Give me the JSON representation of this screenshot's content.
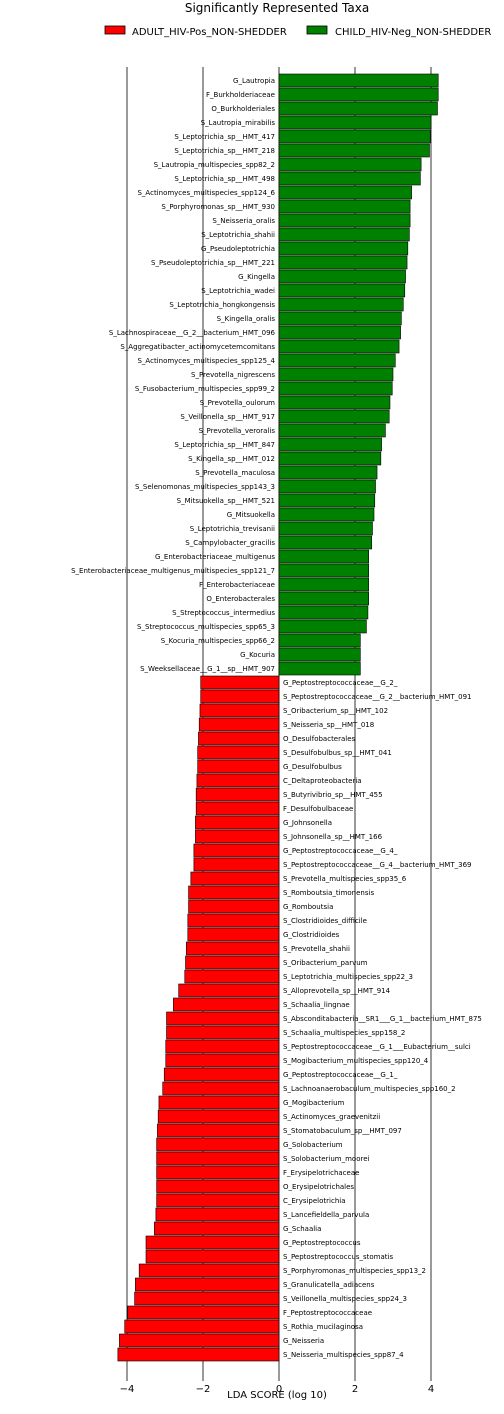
{
  "chart_data": {
    "type": "bar",
    "orientation": "horizontal",
    "title": "Significantly Represented Taxa",
    "xlabel": "LDA SCORE (log 10)",
    "xlim": [
      -4.3,
      5.3
    ],
    "xticks": [
      -4,
      -2,
      0,
      2,
      4
    ],
    "xtick_labels": [
      "−4",
      "−2",
      "0",
      "2",
      "4"
    ],
    "grid": "vertical lines at ticks",
    "legend_position": "top",
    "series": [
      {
        "name": "ADULT_HIV-Pos_NON-SHEDDER",
        "color": "#ff0000"
      },
      {
        "name": "CHILD_HIV-Neg_NON-SHEDDER",
        "color": "#008000"
      }
    ],
    "bars": [
      {
        "label": "G_Lautropia",
        "value": 4.19,
        "group": 1
      },
      {
        "label": "F_Burkholderiaceae",
        "value": 4.19,
        "group": 1
      },
      {
        "label": "O_Burkholderiales",
        "value": 4.17,
        "group": 1
      },
      {
        "label": "S_Lautropia_mirabilis",
        "value": 4.0,
        "group": 1
      },
      {
        "label": "S_Leptotrichia_sp__HMT_417",
        "value": 3.98,
        "group": 1
      },
      {
        "label": "S_Leptotrichia_sp__HMT_218",
        "value": 3.96,
        "group": 1
      },
      {
        "label": "S_Lautropia_multispecies_spp82_2",
        "value": 3.74,
        "group": 1
      },
      {
        "label": "S_Leptotrichia_sp__HMT_498",
        "value": 3.72,
        "group": 1
      },
      {
        "label": "S_Actinomyces_multispecies_spp124_6",
        "value": 3.49,
        "group": 1
      },
      {
        "label": "S_Porphyromonas_sp__HMT_930",
        "value": 3.45,
        "group": 1
      },
      {
        "label": "S_Neisseria_oralis",
        "value": 3.45,
        "group": 1
      },
      {
        "label": "S_Leptotrichia_shahii",
        "value": 3.43,
        "group": 1
      },
      {
        "label": "G_Pseudoleptotrichia",
        "value": 3.39,
        "group": 1
      },
      {
        "label": "S_Pseudoleptotrichia_sp__HMT_221",
        "value": 3.37,
        "group": 1
      },
      {
        "label": "G_Kingella",
        "value": 3.33,
        "group": 1
      },
      {
        "label": "S_Leptotrichia_wadei",
        "value": 3.31,
        "group": 1
      },
      {
        "label": "S_Leptotrichia_hongkongensis",
        "value": 3.27,
        "group": 1
      },
      {
        "label": "S_Kingella_oralis",
        "value": 3.22,
        "group": 1
      },
      {
        "label": "S_Lachnospiraceae__G_2__bacterium_HMT_096",
        "value": 3.2,
        "group": 1
      },
      {
        "label": "S_Aggregatibacter_actinomycetemcomitans",
        "value": 3.16,
        "group": 1
      },
      {
        "label": "S_Actinomyces_multispecies_spp125_4",
        "value": 3.06,
        "group": 1
      },
      {
        "label": "S_Prevotella_nigrescens",
        "value": 3.0,
        "group": 1
      },
      {
        "label": "S_Fusobacterium_multispecies_spp99_2",
        "value": 2.98,
        "group": 1
      },
      {
        "label": "S_Prevotella_oulorum",
        "value": 2.92,
        "group": 1
      },
      {
        "label": "S_Veillonella_sp__HMT_917",
        "value": 2.9,
        "group": 1
      },
      {
        "label": "S_Prevotella_veroralis",
        "value": 2.8,
        "group": 1
      },
      {
        "label": "S_Leptotrichia_sp__HMT_847",
        "value": 2.7,
        "group": 1
      },
      {
        "label": "S_Kingella_sp__HMT_012",
        "value": 2.68,
        "group": 1
      },
      {
        "label": "S_Prevotella_maculosa",
        "value": 2.58,
        "group": 1
      },
      {
        "label": "S_Selenomonas_multispecies_spp143_3",
        "value": 2.54,
        "group": 1
      },
      {
        "label": "S_Mitsuokella_sp__HMT_521",
        "value": 2.52,
        "group": 1
      },
      {
        "label": "G_Mitsuokella",
        "value": 2.5,
        "group": 1
      },
      {
        "label": "S_Leptotrichia_trevisanii",
        "value": 2.46,
        "group": 1
      },
      {
        "label": "S_Campylobacter_gracilis",
        "value": 2.44,
        "group": 1
      },
      {
        "label": "G_Enterobacteriaceae_multigenus",
        "value": 2.36,
        "group": 1
      },
      {
        "label": "S_Enterobacteriaceae_multigenus_multispecies_spp121_7",
        "value": 2.36,
        "group": 1
      },
      {
        "label": "F_Enterobacteriaceae",
        "value": 2.36,
        "group": 1
      },
      {
        "label": "O_Enterobacterales",
        "value": 2.36,
        "group": 1
      },
      {
        "label": "S_Streptococcus_intermedius",
        "value": 2.34,
        "group": 1
      },
      {
        "label": "S_Streptococcus_multispecies_spp65_3",
        "value": 2.3,
        "group": 1
      },
      {
        "label": "S_Kocuria_multispecies_spp66_2",
        "value": 2.14,
        "group": 1
      },
      {
        "label": "G_Kocuria",
        "value": 2.14,
        "group": 1
      },
      {
        "label": "S_Weeksellaceae__G_1__sp__HMT_907",
        "value": 2.14,
        "group": 1
      },
      {
        "label": "G_Peptostreptococcaceae__G_2_",
        "value": -2.06,
        "group": 0
      },
      {
        "label": "S_Peptostreptococcaceae__G_2__bacterium_HMT_091",
        "value": -2.06,
        "group": 0
      },
      {
        "label": "S_Oribacterium_sp__HMT_102",
        "value": -2.08,
        "group": 0
      },
      {
        "label": "S_Neisseria_sp__HMT_018",
        "value": -2.1,
        "group": 0
      },
      {
        "label": "O_Desulfobacterales",
        "value": -2.12,
        "group": 0
      },
      {
        "label": "S_Desulfobulbus_sp__HMT_041",
        "value": -2.14,
        "group": 0
      },
      {
        "label": "G_Desulfobulbus",
        "value": -2.14,
        "group": 0
      },
      {
        "label": "C_Deltaproteobacteria",
        "value": -2.16,
        "group": 0
      },
      {
        "label": "S_Butyrivibrio_sp__HMT_455",
        "value": -2.18,
        "group": 0
      },
      {
        "label": "F_Desulfobulbaceae",
        "value": -2.18,
        "group": 0
      },
      {
        "label": "G_Johnsonella",
        "value": -2.2,
        "group": 0
      },
      {
        "label": "S_Johnsonella_sp__HMT_166",
        "value": -2.2,
        "group": 0
      },
      {
        "label": "G_Peptostreptococcaceae__G_4_",
        "value": -2.24,
        "group": 0
      },
      {
        "label": "S_Peptostreptococcaceae__G_4__bacterium_HMT_369",
        "value": -2.24,
        "group": 0
      },
      {
        "label": "S_Prevotella_multispecies_spp35_6",
        "value": -2.32,
        "group": 0
      },
      {
        "label": "S_Romboutsia_timonensis",
        "value": -2.38,
        "group": 0
      },
      {
        "label": "G_Romboutsia",
        "value": -2.38,
        "group": 0
      },
      {
        "label": "S_Clostridioides_difficile",
        "value": -2.4,
        "group": 0
      },
      {
        "label": "G_Clostridioides",
        "value": -2.4,
        "group": 0
      },
      {
        "label": "S_Prevotella_shahii",
        "value": -2.44,
        "group": 0
      },
      {
        "label": "S_Oribacterium_parvum",
        "value": -2.46,
        "group": 0
      },
      {
        "label": "S_Leptotrichia_multispecies_spp22_3",
        "value": -2.48,
        "group": 0
      },
      {
        "label": "S_Alloprevotella_sp__HMT_914",
        "value": -2.64,
        "group": 0
      },
      {
        "label": "S_Schaalia_lingnae",
        "value": -2.78,
        "group": 0
      },
      {
        "label": "S_Absconditabacteria__SR1___G_1__bacterium_HMT_875",
        "value": -2.96,
        "group": 0
      },
      {
        "label": "S_Schaalia_multispecies_spp158_2",
        "value": -2.96,
        "group": 0
      },
      {
        "label": "S_Peptostreptococcaceae__G_1___Eubacterium__sulci",
        "value": -2.98,
        "group": 0
      },
      {
        "label": "S_Mogibacterium_multispecies_spp120_4",
        "value": -2.98,
        "group": 0
      },
      {
        "label": "G_Peptostreptococcaceae__G_1_",
        "value": -3.02,
        "group": 0
      },
      {
        "label": "S_Lachnoanaerobaculum_multispecies_spp160_2",
        "value": -3.06,
        "group": 0
      },
      {
        "label": "G_Mogibacterium",
        "value": -3.16,
        "group": 0
      },
      {
        "label": "S_Actinomyces_graevenitzii",
        "value": -3.18,
        "group": 0
      },
      {
        "label": "S_Stomatobaculum_sp__HMT_097",
        "value": -3.2,
        "group": 0
      },
      {
        "label": "G_Solobacterium",
        "value": -3.22,
        "group": 0
      },
      {
        "label": "S_Solobacterium_moorei",
        "value": -3.22,
        "group": 0
      },
      {
        "label": "F_Erysipelotrichaceae",
        "value": -3.22,
        "group": 0
      },
      {
        "label": "O_Erysipelotrichales",
        "value": -3.22,
        "group": 0
      },
      {
        "label": "C_Erysipelotrichia",
        "value": -3.22,
        "group": 0
      },
      {
        "label": "S_Lancefieldella_parvula",
        "value": -3.24,
        "group": 0
      },
      {
        "label": "G_Schaalia",
        "value": -3.28,
        "group": 0
      },
      {
        "label": "G_Peptostreptococcus",
        "value": -3.5,
        "group": 0
      },
      {
        "label": "S_Peptostreptococcus_stomatis",
        "value": -3.5,
        "group": 0
      },
      {
        "label": "S_Porphyromonas_multispecies_spp13_2",
        "value": -3.68,
        "group": 0
      },
      {
        "label": "S_Granulicatella_adiacens",
        "value": -3.78,
        "group": 0
      },
      {
        "label": "S_Veillonella_multispecies_spp24_3",
        "value": -3.8,
        "group": 0
      },
      {
        "label": "F_Peptostreptococcaceae",
        "value": -3.98,
        "group": 0
      },
      {
        "label": "S_Rothia_mucilaginosa",
        "value": -4.06,
        "group": 0
      },
      {
        "label": "G_Neisseria",
        "value": -4.2,
        "group": 0
      },
      {
        "label": "S_Neisseria_multispecies_spp87_4",
        "value": -4.24,
        "group": 0
      }
    ]
  }
}
